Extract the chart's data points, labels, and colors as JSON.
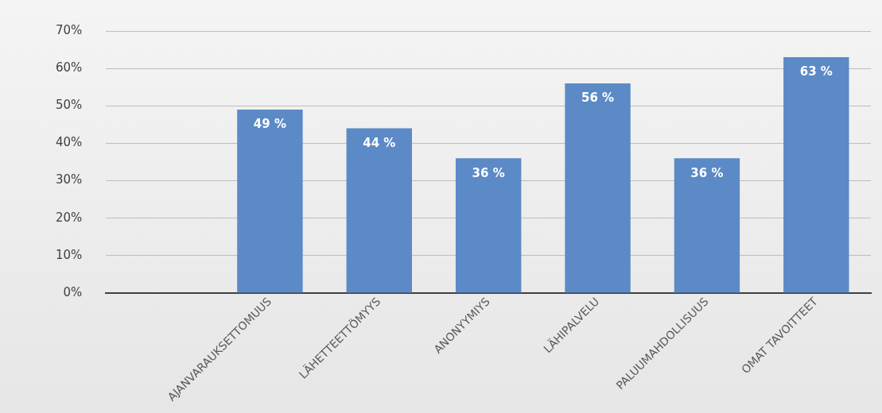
{
  "chart_data": {
    "type": "bar",
    "categories": [
      null,
      "AJANVARAUKSETTOMUUS",
      "LÄHETTEETTÖMYYS",
      "ANONYYMIYS",
      "LÄHIPALVELU",
      "PALUUMAHDOLLISUUS",
      "OMAT TAVOITTEET"
    ],
    "values": [
      null,
      49,
      44,
      36,
      56,
      36,
      63
    ],
    "value_labels": [
      null,
      "49 %",
      "44 %",
      "36 %",
      "56 %",
      "36 %",
      "63 %"
    ],
    "color": "#5b8ac6",
    "ylim": [
      0,
      70
    ],
    "yticks": [
      {
        "value": 0,
        "label": "0%"
      },
      {
        "value": 10,
        "label": "10%"
      },
      {
        "value": 20,
        "label": "20%"
      },
      {
        "value": 30,
        "label": "30%"
      },
      {
        "value": 40,
        "label": "40%"
      },
      {
        "value": 50,
        "label": "50%"
      },
      {
        "value": 60,
        "label": "60%"
      },
      {
        "value": 70,
        "label": "70%"
      }
    ],
    "grid": "y",
    "legend": false
  }
}
